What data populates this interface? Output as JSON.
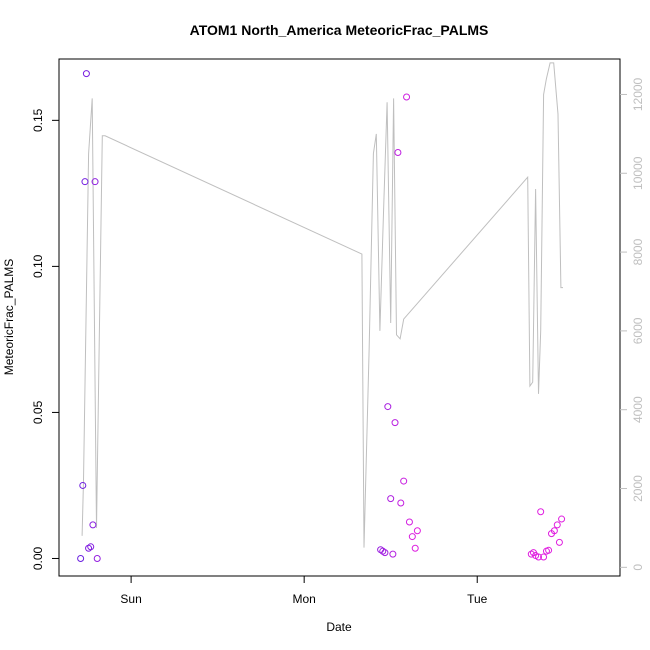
{
  "chart_data": {
    "type": "scatter",
    "title": "ATOM1 North_America MeteoricFrac_PALMS",
    "xlabel": "Date",
    "ylabel": "MeteoricFrac_PALMS",
    "x_ticks": [
      {
        "label": "Sun",
        "value": 24.0
      },
      {
        "label": "Mon",
        "value": 48.0
      },
      {
        "label": "Tue",
        "value": 72.0
      }
    ],
    "xlim": [
      14.0,
      91.8
    ],
    "ylim": [
      -0.006,
      0.171
    ],
    "y_ticks": [
      0.0,
      0.05,
      0.1,
      0.15
    ],
    "y_tick_labels": [
      "0.00",
      "0.05",
      "0.10",
      "0.15"
    ],
    "y2lim": [
      -220,
      12900
    ],
    "y2_ticks": [
      0,
      2000,
      4000,
      6000,
      8000,
      10000,
      12000
    ],
    "y2_tick_labels": [
      "0",
      "2000",
      "4000",
      "6000",
      "8000",
      "10000",
      "12000"
    ],
    "colors": {
      "axis": "#000000",
      "altitude_line": "#bfbfbf",
      "point_start": "#6a1fe0",
      "point_end": "#e01fe0"
    },
    "altitude_line": {
      "x": [
        17.2,
        17.4,
        18.1,
        18.6,
        19.2,
        19.6,
        20.0,
        20.4,
        56.0,
        56.3,
        57.0,
        57.6,
        58.0,
        58.5,
        59.0,
        59.5,
        60.0,
        60.4,
        60.8,
        61.3,
        61.8,
        79.0,
        79.3,
        79.7,
        80.1,
        80.5,
        80.8,
        81.2,
        81.6,
        82.1,
        82.6,
        83.2,
        83.6,
        83.9
      ],
      "y": [
        800,
        2200,
        10500,
        11900,
        1000,
        6000,
        10950,
        10950,
        7950,
        500,
        5500,
        10500,
        11000,
        6000,
        9000,
        11800,
        6200,
        11900,
        5900,
        5800,
        6300,
        9900,
        4600,
        4700,
        9600,
        4400,
        6000,
        12000,
        12400,
        12800,
        12800,
        11500,
        7100,
        7100
      ]
    },
    "points": {
      "x": [
        17.0,
        17.3,
        17.6,
        17.8,
        18.1,
        18.4,
        18.7,
        19.0,
        19.3,
        58.6,
        58.9,
        59.2,
        59.6,
        60.0,
        60.3,
        60.6,
        61.0,
        61.4,
        61.8,
        62.2,
        62.6,
        63.0,
        63.4,
        63.7,
        79.5,
        79.8,
        80.1,
        80.5,
        80.8,
        81.2,
        81.6,
        81.9,
        82.3,
        82.7,
        83.1,
        83.4,
        83.7
      ],
      "y": [
        0.0,
        0.025,
        0.129,
        0.166,
        0.0035,
        0.004,
        0.0115,
        0.129,
        0.0,
        0.003,
        0.0025,
        0.002,
        0.052,
        0.0205,
        0.0015,
        0.0465,
        0.139,
        0.019,
        0.0265,
        0.158,
        0.0125,
        0.0075,
        0.0035,
        0.0095,
        0.0015,
        0.002,
        0.001,
        0.0005,
        0.016,
        0.0005,
        0.0025,
        0.0028,
        0.0085,
        0.0095,
        0.0115,
        0.0055,
        0.0135
      ]
    }
  }
}
